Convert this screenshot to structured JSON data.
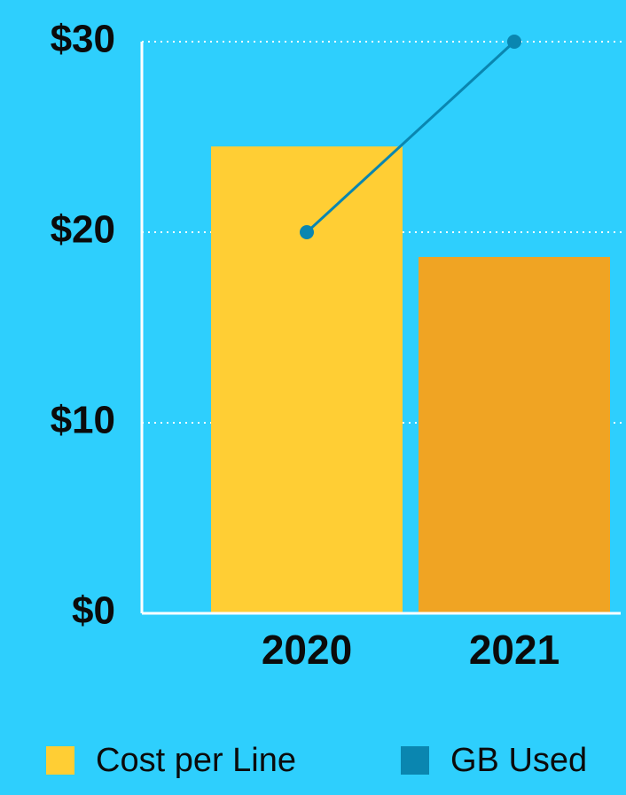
{
  "chart_data": {
    "type": "bar",
    "categories": [
      "2020",
      "2021"
    ],
    "series": [
      {
        "name": "Cost per Line",
        "type": "bar",
        "color": "#ffce34",
        "colors": [
          "#ffce34",
          "#f0a423"
        ],
        "values": [
          24.5,
          18.7
        ]
      },
      {
        "name": "GB Used",
        "type": "line",
        "color": "#0a86b0",
        "values": [
          20,
          30
        ]
      }
    ],
    "ylim": [
      0,
      30
    ],
    "yticks": [
      {
        "value": 0,
        "label": "$0"
      },
      {
        "value": 10,
        "label": "$10"
      },
      {
        "value": 20,
        "label": "$20"
      },
      {
        "value": 30,
        "label": "$30"
      }
    ],
    "grid": true
  }
}
